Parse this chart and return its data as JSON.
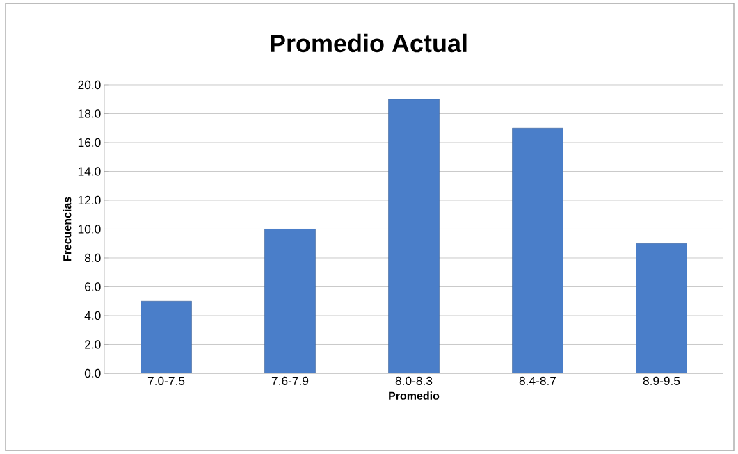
{
  "chart_data": {
    "type": "bar",
    "title": "Promedio Actual",
    "xlabel": "Promedio",
    "ylabel": "Frecuencias",
    "categories": [
      "7.0-7.5",
      "7.6-7.9",
      "8.0-8.3",
      "8.4-8.7",
      "8.9-9.5"
    ],
    "values": [
      5,
      10,
      19,
      17,
      9
    ],
    "color": "#4a7ec9",
    "ylim": [
      0,
      20
    ],
    "yticks": [
      {
        "value": 0,
        "label": "0.0"
      },
      {
        "value": 2,
        "label": "2.0"
      },
      {
        "value": 4,
        "label": "4.0"
      },
      {
        "value": 6,
        "label": "6.0"
      },
      {
        "value": 8,
        "label": "8.0"
      },
      {
        "value": 10,
        "label": "10.0"
      },
      {
        "value": 12,
        "label": "12.0"
      },
      {
        "value": 14,
        "label": "14.0"
      },
      {
        "value": 16,
        "label": "16.0"
      },
      {
        "value": 18,
        "label": "18.0"
      },
      {
        "value": 20,
        "label": "20.0"
      }
    ],
    "grid": "y"
  }
}
